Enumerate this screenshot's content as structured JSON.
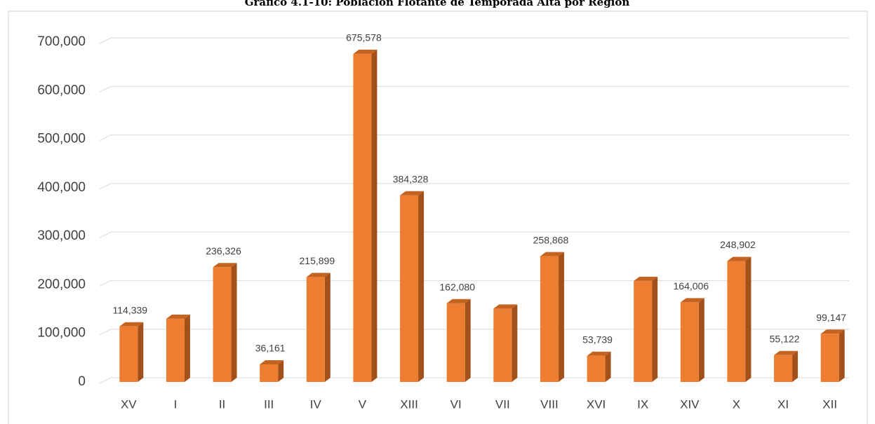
{
  "chart_data": {
    "type": "bar",
    "title": "Gráfico 4.1-10: Población Flotante de Temporada Alta por Región",
    "categories": [
      "XV",
      "I",
      "II",
      "III",
      "IV",
      "V",
      "XIII",
      "VI",
      "VII",
      "VIII",
      "XVI",
      "IX",
      "XIV",
      "X",
      "XI",
      "XII"
    ],
    "values": [
      114339,
      130000,
      236326,
      36161,
      215899,
      675578,
      384328,
      162080,
      151000,
      258868,
      53739,
      208000,
      164006,
      248902,
      55122,
      99147
    ],
    "value_labels": [
      "114,339",
      null,
      "236,326",
      "36,161",
      "215,899",
      "675,578",
      "384,328",
      "162,080",
      null,
      "258,868",
      "53,739",
      null,
      "164,006",
      "248,902",
      "55,122",
      "99,147"
    ],
    "color": "#ed7d31",
    "ylim": [
      0,
      700000
    ],
    "yticks": [
      0,
      {
        "value": 100000,
        "label": "100,000"
      },
      {
        "value": 200000,
        "label": "200,000"
      },
      {
        "value": 300000,
        "label": "300,000"
      },
      {
        "value": 400000,
        "label": "400,000"
      },
      {
        "value": 500000,
        "label": "500,000"
      },
      {
        "value": 600000,
        "label": "600,000"
      },
      {
        "value": 700000,
        "label": "700,000"
      }
    ],
    "grid": true
  }
}
